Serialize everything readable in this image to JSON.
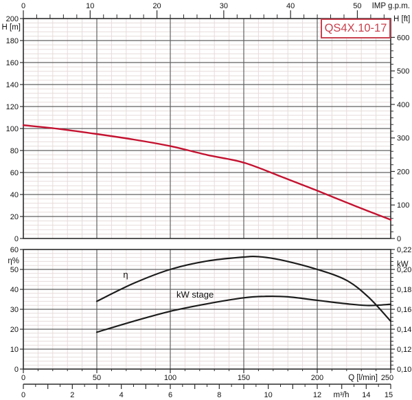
{
  "title": "QS4X.10-17",
  "colors": {
    "curve_red": "#c41230",
    "curve_black": "#1c1c1c",
    "title_red": "#c9404e",
    "grid_major": "#606060",
    "grid_minor": "#e7dbdb",
    "border": "#2b2b2b",
    "text": "#111111"
  },
  "x_axis": {
    "label": "Q [l/min]",
    "range": [
      0,
      250
    ],
    "major_ticks": [
      0,
      50,
      100,
      150,
      200,
      250
    ],
    "minor_step": 10
  },
  "x_axis_secondary": {
    "label": "m³/h",
    "range": [
      0,
      15
    ],
    "labeled_ticks": [
      0,
      2,
      4,
      6,
      8,
      10,
      12,
      14,
      15
    ],
    "integer_tick_step": 1,
    "minor_step": 0.5
  },
  "chart_data": [
    {
      "type": "line",
      "id": "head_vs_flow",
      "title": "QS4X.10-17",
      "x_top_axis": {
        "label": "IMP g.p.m.",
        "major_ticks": [
          0,
          10,
          20,
          30,
          40,
          50
        ],
        "minor_step": 2,
        "minor_max": 54,
        "lmin_per_unit": 4.54609
      },
      "y_axis_left": {
        "label": "H [m]",
        "range": [
          0,
          200
        ],
        "major_ticks": [
          0,
          20,
          40,
          60,
          80,
          100,
          120,
          140,
          160,
          180,
          200
        ],
        "minor_step": 4
      },
      "y_axis_right": {
        "label": "H [ft]",
        "range": [
          0,
          600
        ],
        "major_ticks": [
          0,
          100,
          200,
          300,
          400,
          500,
          600
        ],
        "minor_step": 20,
        "m_per_unit": 0.3048
      },
      "series": [
        {
          "name": "H",
          "axis": "left",
          "color_key": "curve_red",
          "points": [
            [
              0,
              103
            ],
            [
              25,
              99.5
            ],
            [
              50,
              95
            ],
            [
              75,
              90
            ],
            [
              100,
              84
            ],
            [
              125,
              76
            ],
            [
              150,
              69
            ],
            [
              175,
              56.5
            ],
            [
              200,
              43.5
            ],
            [
              225,
              30
            ],
            [
              250,
              17
            ]
          ]
        }
      ]
    },
    {
      "type": "line",
      "id": "efficiency_and_power",
      "y_axis_left": {
        "label": "η%",
        "range": [
          0,
          60
        ],
        "major_ticks": [
          0,
          10,
          20,
          30,
          40,
          50,
          60
        ],
        "minor_step": 2
      },
      "y_axis_right": {
        "label": "kW",
        "range": [
          0.1,
          0.22
        ],
        "major_tick_values": [
          0.1,
          0.12,
          0.14,
          0.16,
          0.18,
          0.2,
          0.22
        ],
        "major_tick_labels": [
          "0,10",
          "0,12",
          "0,14",
          "0,16",
          "0,18",
          "0,20",
          "0,22"
        ],
        "minor_step": 0.004
      },
      "series": [
        {
          "name": "η",
          "axis": "left",
          "color_key": "curve_black",
          "points": [
            [
              50,
              34
            ],
            [
              75,
              43
            ],
            [
              100,
              50
            ],
            [
              125,
              54.2
            ],
            [
              150,
              56.2
            ],
            [
              160,
              56.4
            ],
            [
              175,
              54.8
            ],
            [
              200,
              50
            ],
            [
              220,
              44.5
            ],
            [
              235,
              36
            ],
            [
              250,
              24
            ]
          ]
        },
        {
          "name": "kW stage",
          "axis": "right",
          "color_key": "curve_black",
          "points": [
            [
              50,
              0.137
            ],
            [
              75,
              0.148
            ],
            [
              100,
              0.158
            ],
            [
              125,
              0.1655
            ],
            [
              150,
              0.1715
            ],
            [
              165,
              0.173
            ],
            [
              180,
              0.1725
            ],
            [
              200,
              0.169
            ],
            [
              220,
              0.1655
            ],
            [
              235,
              0.1638
            ],
            [
              250,
              0.165
            ]
          ]
        }
      ]
    }
  ]
}
